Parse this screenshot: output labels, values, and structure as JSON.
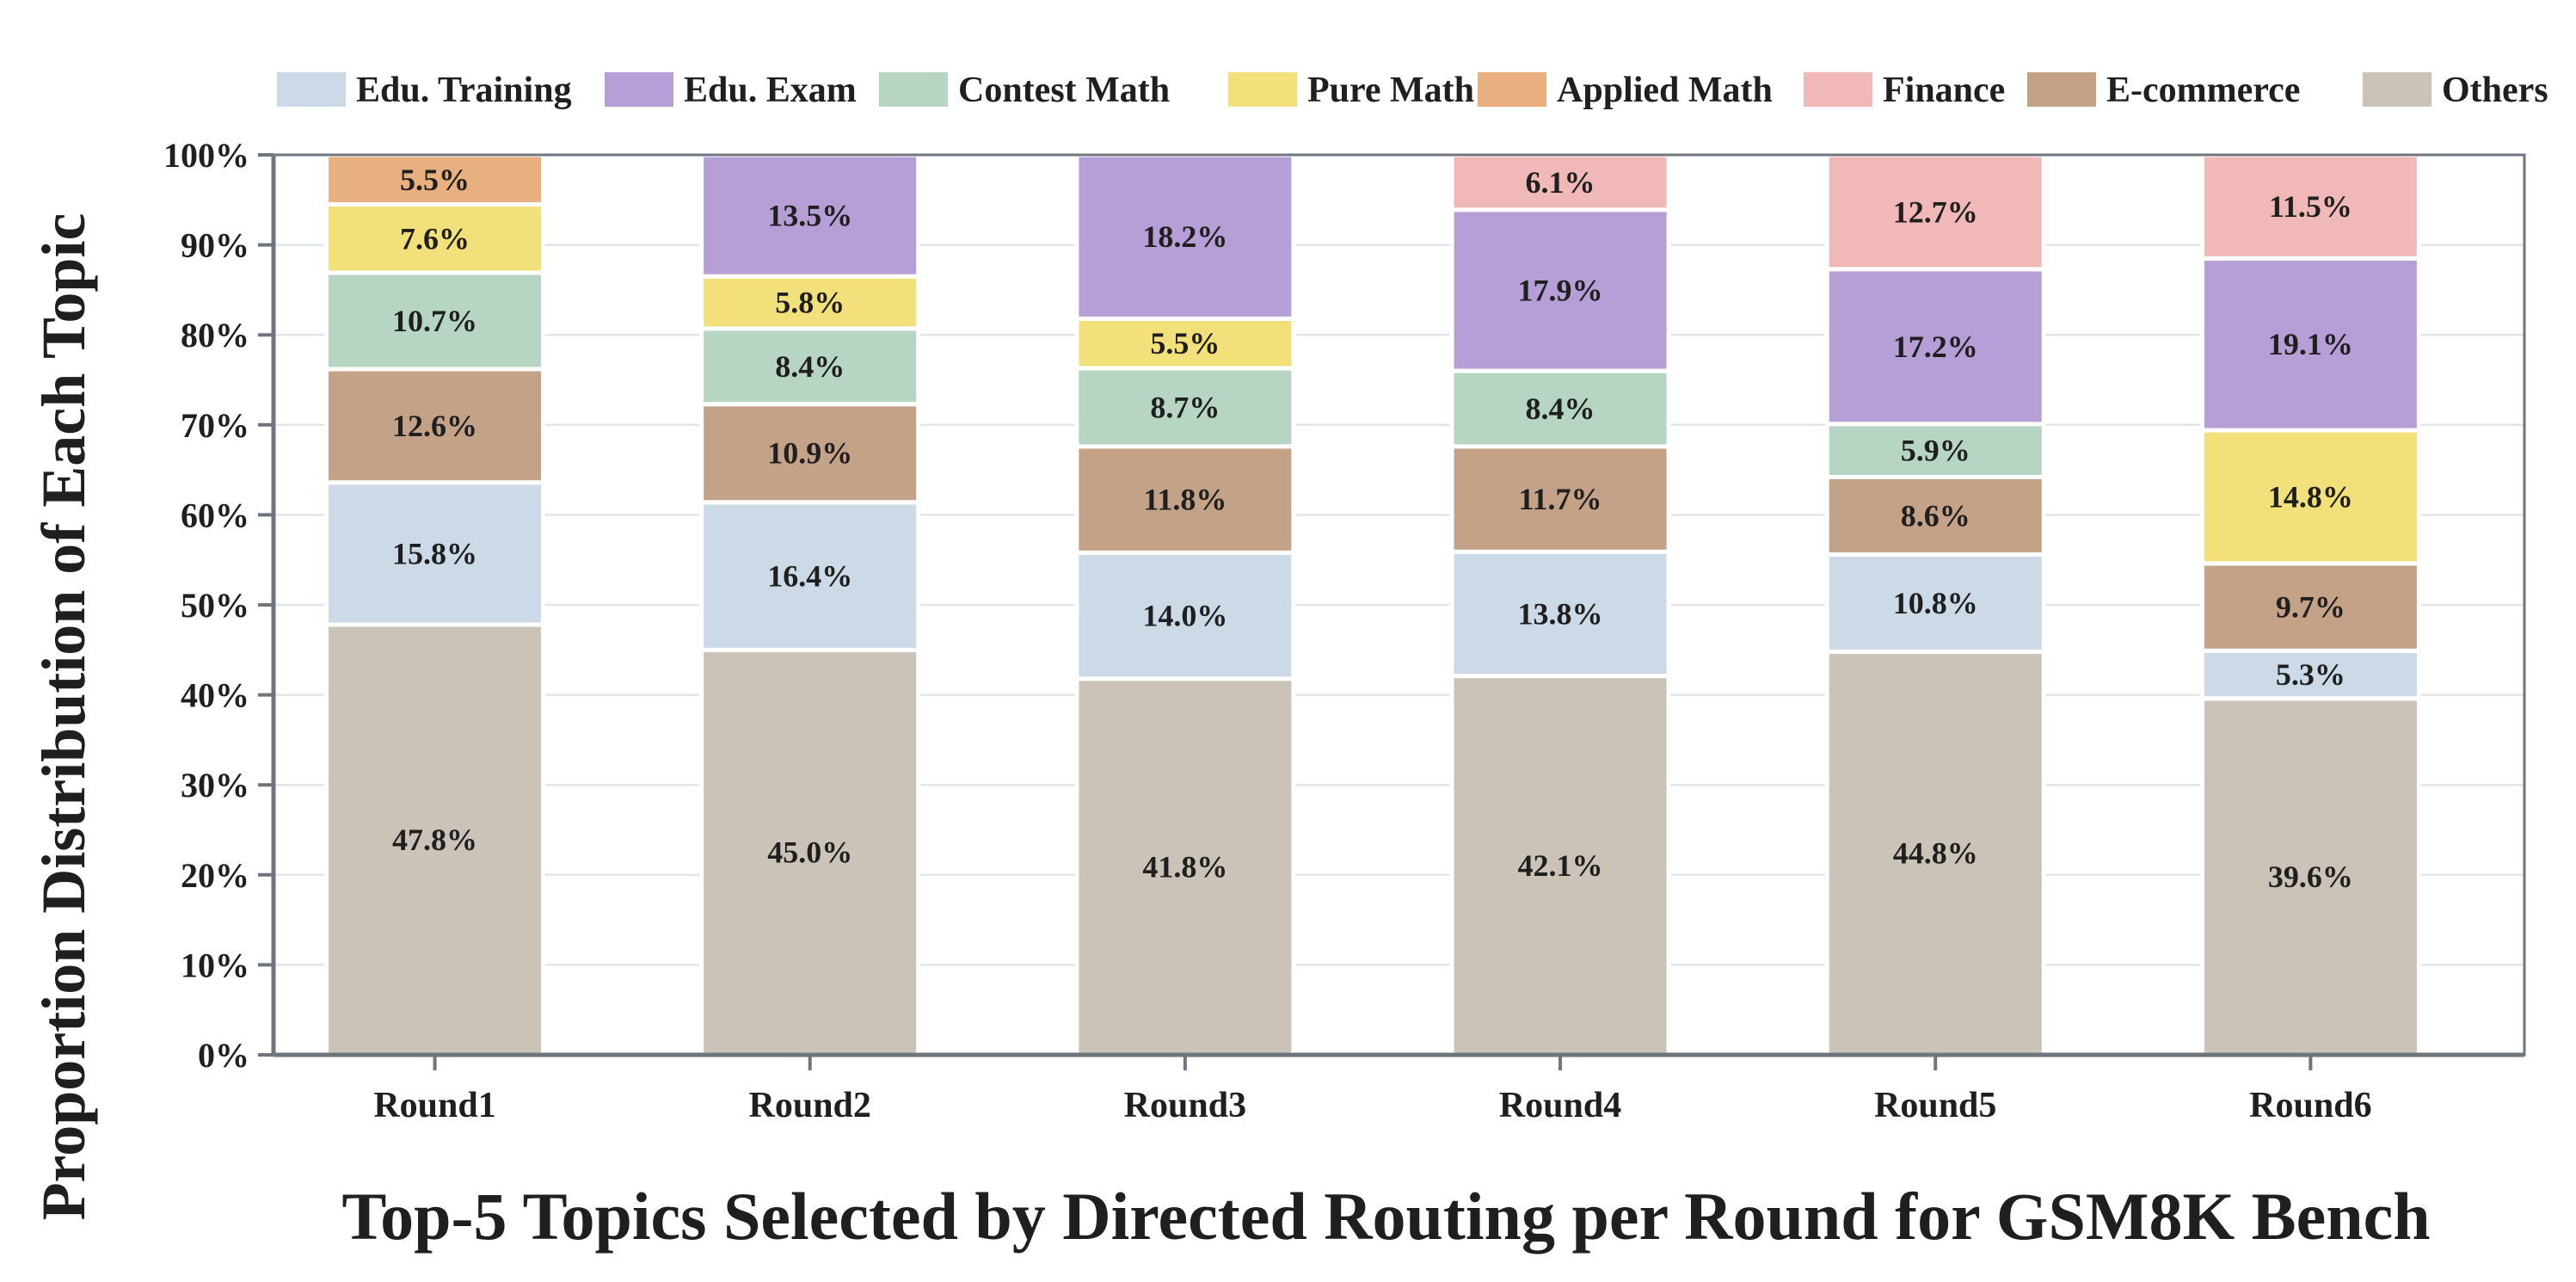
{
  "chart_data": {
    "type": "bar",
    "stacked": true,
    "categories": [
      "Round1",
      "Round2",
      "Round3",
      "Round4",
      "Round5",
      "Round6"
    ],
    "series": [
      {
        "name": "Others",
        "color": "#cbc2b8",
        "values": [
          47.8,
          45.0,
          41.8,
          42.1,
          44.8,
          39.6
        ],
        "labels": [
          "47.8%",
          "45.0%",
          "41.8%",
          "42.1%",
          "44.8%",
          "39.6%"
        ]
      },
      {
        "name": "Edu. Training",
        "color": "#ccd9e6",
        "values": [
          15.8,
          16.4,
          14.0,
          13.8,
          10.8,
          5.3
        ],
        "labels": [
          "15.8%",
          "16.4%",
          "14.0%",
          "13.8%",
          "10.8%",
          "5.3%"
        ]
      },
      {
        "name": "E-commerce",
        "color": "#c4a288",
        "values": [
          12.6,
          10.9,
          11.8,
          11.7,
          8.6,
          9.7
        ],
        "labels": [
          "12.6%",
          "10.9%",
          "11.8%",
          "11.7%",
          "8.6%",
          "9.7%"
        ]
      },
      {
        "name": "Contest Math",
        "color": "#b6d5c2",
        "values": [
          10.7,
          8.4,
          8.7,
          8.4,
          5.9,
          null
        ],
        "labels": [
          "10.7%",
          "8.4%",
          "8.7%",
          "8.4%",
          "5.9%",
          ""
        ]
      },
      {
        "name": "Pure Math",
        "color": "#f2e07a",
        "values": [
          7.6,
          5.8,
          5.5,
          null,
          null,
          14.8
        ],
        "labels": [
          "7.6%",
          "5.8%",
          "5.5%",
          "",
          "",
          "14.8%"
        ]
      },
      {
        "name": "Edu. Exam",
        "color": "#b59fd6",
        "values": [
          null,
          13.5,
          18.2,
          17.9,
          17.2,
          19.1
        ],
        "labels": [
          "",
          "13.5%",
          "18.2%",
          "17.9%",
          "17.2%",
          "19.1%"
        ]
      },
      {
        "name": "Applied Math",
        "color": "#e8b07e",
        "values": [
          5.5,
          null,
          null,
          null,
          null,
          null
        ],
        "labels": [
          "5.5%",
          "",
          "",
          "",
          "",
          ""
        ]
      },
      {
        "name": "Finance",
        "color": "#f1b8b8",
        "values": [
          null,
          null,
          null,
          6.1,
          12.7,
          11.5
        ],
        "labels": [
          "",
          "",
          "",
          "6.1%",
          "12.7%",
          "11.5%"
        ]
      }
    ],
    "legend": [
      "Edu. Training",
      "Edu. Exam",
      "Contest Math",
      "Pure Math",
      "Applied Math",
      "Finance",
      "E-commerce",
      "Others"
    ],
    "legend_position": "top",
    "xlabel": "Top-5 Topics Selected by Directed Routing per Round for GSM8K Bench",
    "ylabel": "Proportion Distribution of Each Topic",
    "ylim": [
      0,
      100
    ],
    "yticks": [
      "0%",
      "10%",
      "20%",
      "30%",
      "40%",
      "50%",
      "60%",
      "70%",
      "80%",
      "90%",
      "100%"
    ],
    "grid": "horizontal",
    "axis_color": "#6e757c",
    "grid_color": "#e3e6e8"
  }
}
